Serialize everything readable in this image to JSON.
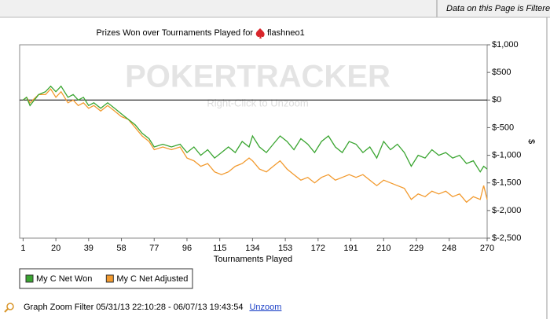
{
  "header": {
    "filter_notice": "Data on this Page is Filtered"
  },
  "chart_data": {
    "type": "line",
    "title": "Prizes Won over Tournaments Played for",
    "player": "flashneo1",
    "x_label": "Tournaments Played",
    "y_label": "$",
    "watermark": {
      "logo": "POKERTRACKER",
      "hint": "Right-Click to Unzoom"
    },
    "x": [
      1,
      3,
      5,
      10,
      14,
      17,
      20,
      23,
      27,
      30,
      33,
      36,
      39,
      42,
      46,
      50,
      54,
      58,
      62,
      66,
      70,
      74,
      77,
      82,
      87,
      92,
      96,
      100,
      104,
      108,
      112,
      116,
      120,
      124,
      128,
      132,
      134,
      138,
      142,
      146,
      150,
      154,
      158,
      162,
      166,
      170,
      174,
      178,
      182,
      186,
      190,
      194,
      198,
      202,
      206,
      210,
      214,
      218,
      222,
      226,
      230,
      234,
      238,
      242,
      246,
      250,
      254,
      258,
      262,
      266,
      268,
      270
    ],
    "series": [
      {
        "name": "My C Net Won",
        "color": "#3aa531",
        "values": [
          0,
          50,
          -100,
          100,
          150,
          250,
          150,
          250,
          50,
          100,
          0,
          50,
          -100,
          -50,
          -150,
          -50,
          -150,
          -250,
          -350,
          -450,
          -600,
          -700,
          -850,
          -800,
          -850,
          -800,
          -950,
          -850,
          -1000,
          -900,
          -1050,
          -950,
          -850,
          -950,
          -750,
          -850,
          -650,
          -850,
          -950,
          -800,
          -650,
          -750,
          -900,
          -700,
          -800,
          -950,
          -750,
          -650,
          -850,
          -950,
          -750,
          -800,
          -950,
          -850,
          -1050,
          -750,
          -900,
          -800,
          -950,
          -1200,
          -1000,
          -1050,
          -900,
          -1000,
          -950,
          -1050,
          -1000,
          -1150,
          -1100,
          -1300,
          -1200,
          -1250
        ]
      },
      {
        "name": "My C Net Adjusted",
        "color": "#f29a2e",
        "values": [
          0,
          50,
          -50,
          100,
          100,
          200,
          50,
          150,
          -50,
          0,
          -100,
          -50,
          -150,
          -100,
          -200,
          -100,
          -200,
          -300,
          -350,
          -500,
          -650,
          -750,
          -900,
          -850,
          -900,
          -850,
          -1050,
          -1100,
          -1200,
          -1150,
          -1300,
          -1350,
          -1300,
          -1200,
          -1150,
          -1050,
          -1100,
          -1250,
          -1300,
          -1200,
          -1100,
          -1250,
          -1350,
          -1450,
          -1400,
          -1500,
          -1400,
          -1350,
          -1450,
          -1400,
          -1350,
          -1400,
          -1350,
          -1450,
          -1550,
          -1450,
          -1500,
          -1550,
          -1600,
          -1800,
          -1700,
          -1750,
          -1650,
          -1700,
          -1650,
          -1750,
          -1700,
          -1850,
          -1750,
          -1800,
          -1550,
          -1800
        ]
      }
    ],
    "xlim": [
      -1,
      270
    ],
    "xticks": [
      1,
      20,
      39,
      58,
      77,
      96,
      115,
      134,
      153,
      172,
      191,
      210,
      229,
      248,
      270
    ],
    "ylim": [
      -2500,
      1000
    ],
    "yticks": [
      {
        "value": 1000,
        "label": "$1,000"
      },
      {
        "value": 500,
        "label": "$500"
      },
      {
        "value": 0,
        "label": "$0"
      },
      {
        "value": -500,
        "label": "$-500"
      },
      {
        "value": -1000,
        "label": "$-1,000"
      },
      {
        "value": -1500,
        "label": "$-1,500"
      },
      {
        "value": -2000,
        "label": "$-2,000"
      },
      {
        "value": -2500,
        "label": "$-2,500"
      }
    ],
    "zero_line": true
  },
  "footer": {
    "zoom_filter": "Graph Zoom Filter 05/31/13 22:10:28 - 06/07/13 19:43:54",
    "unzoom": "Unzoom"
  }
}
